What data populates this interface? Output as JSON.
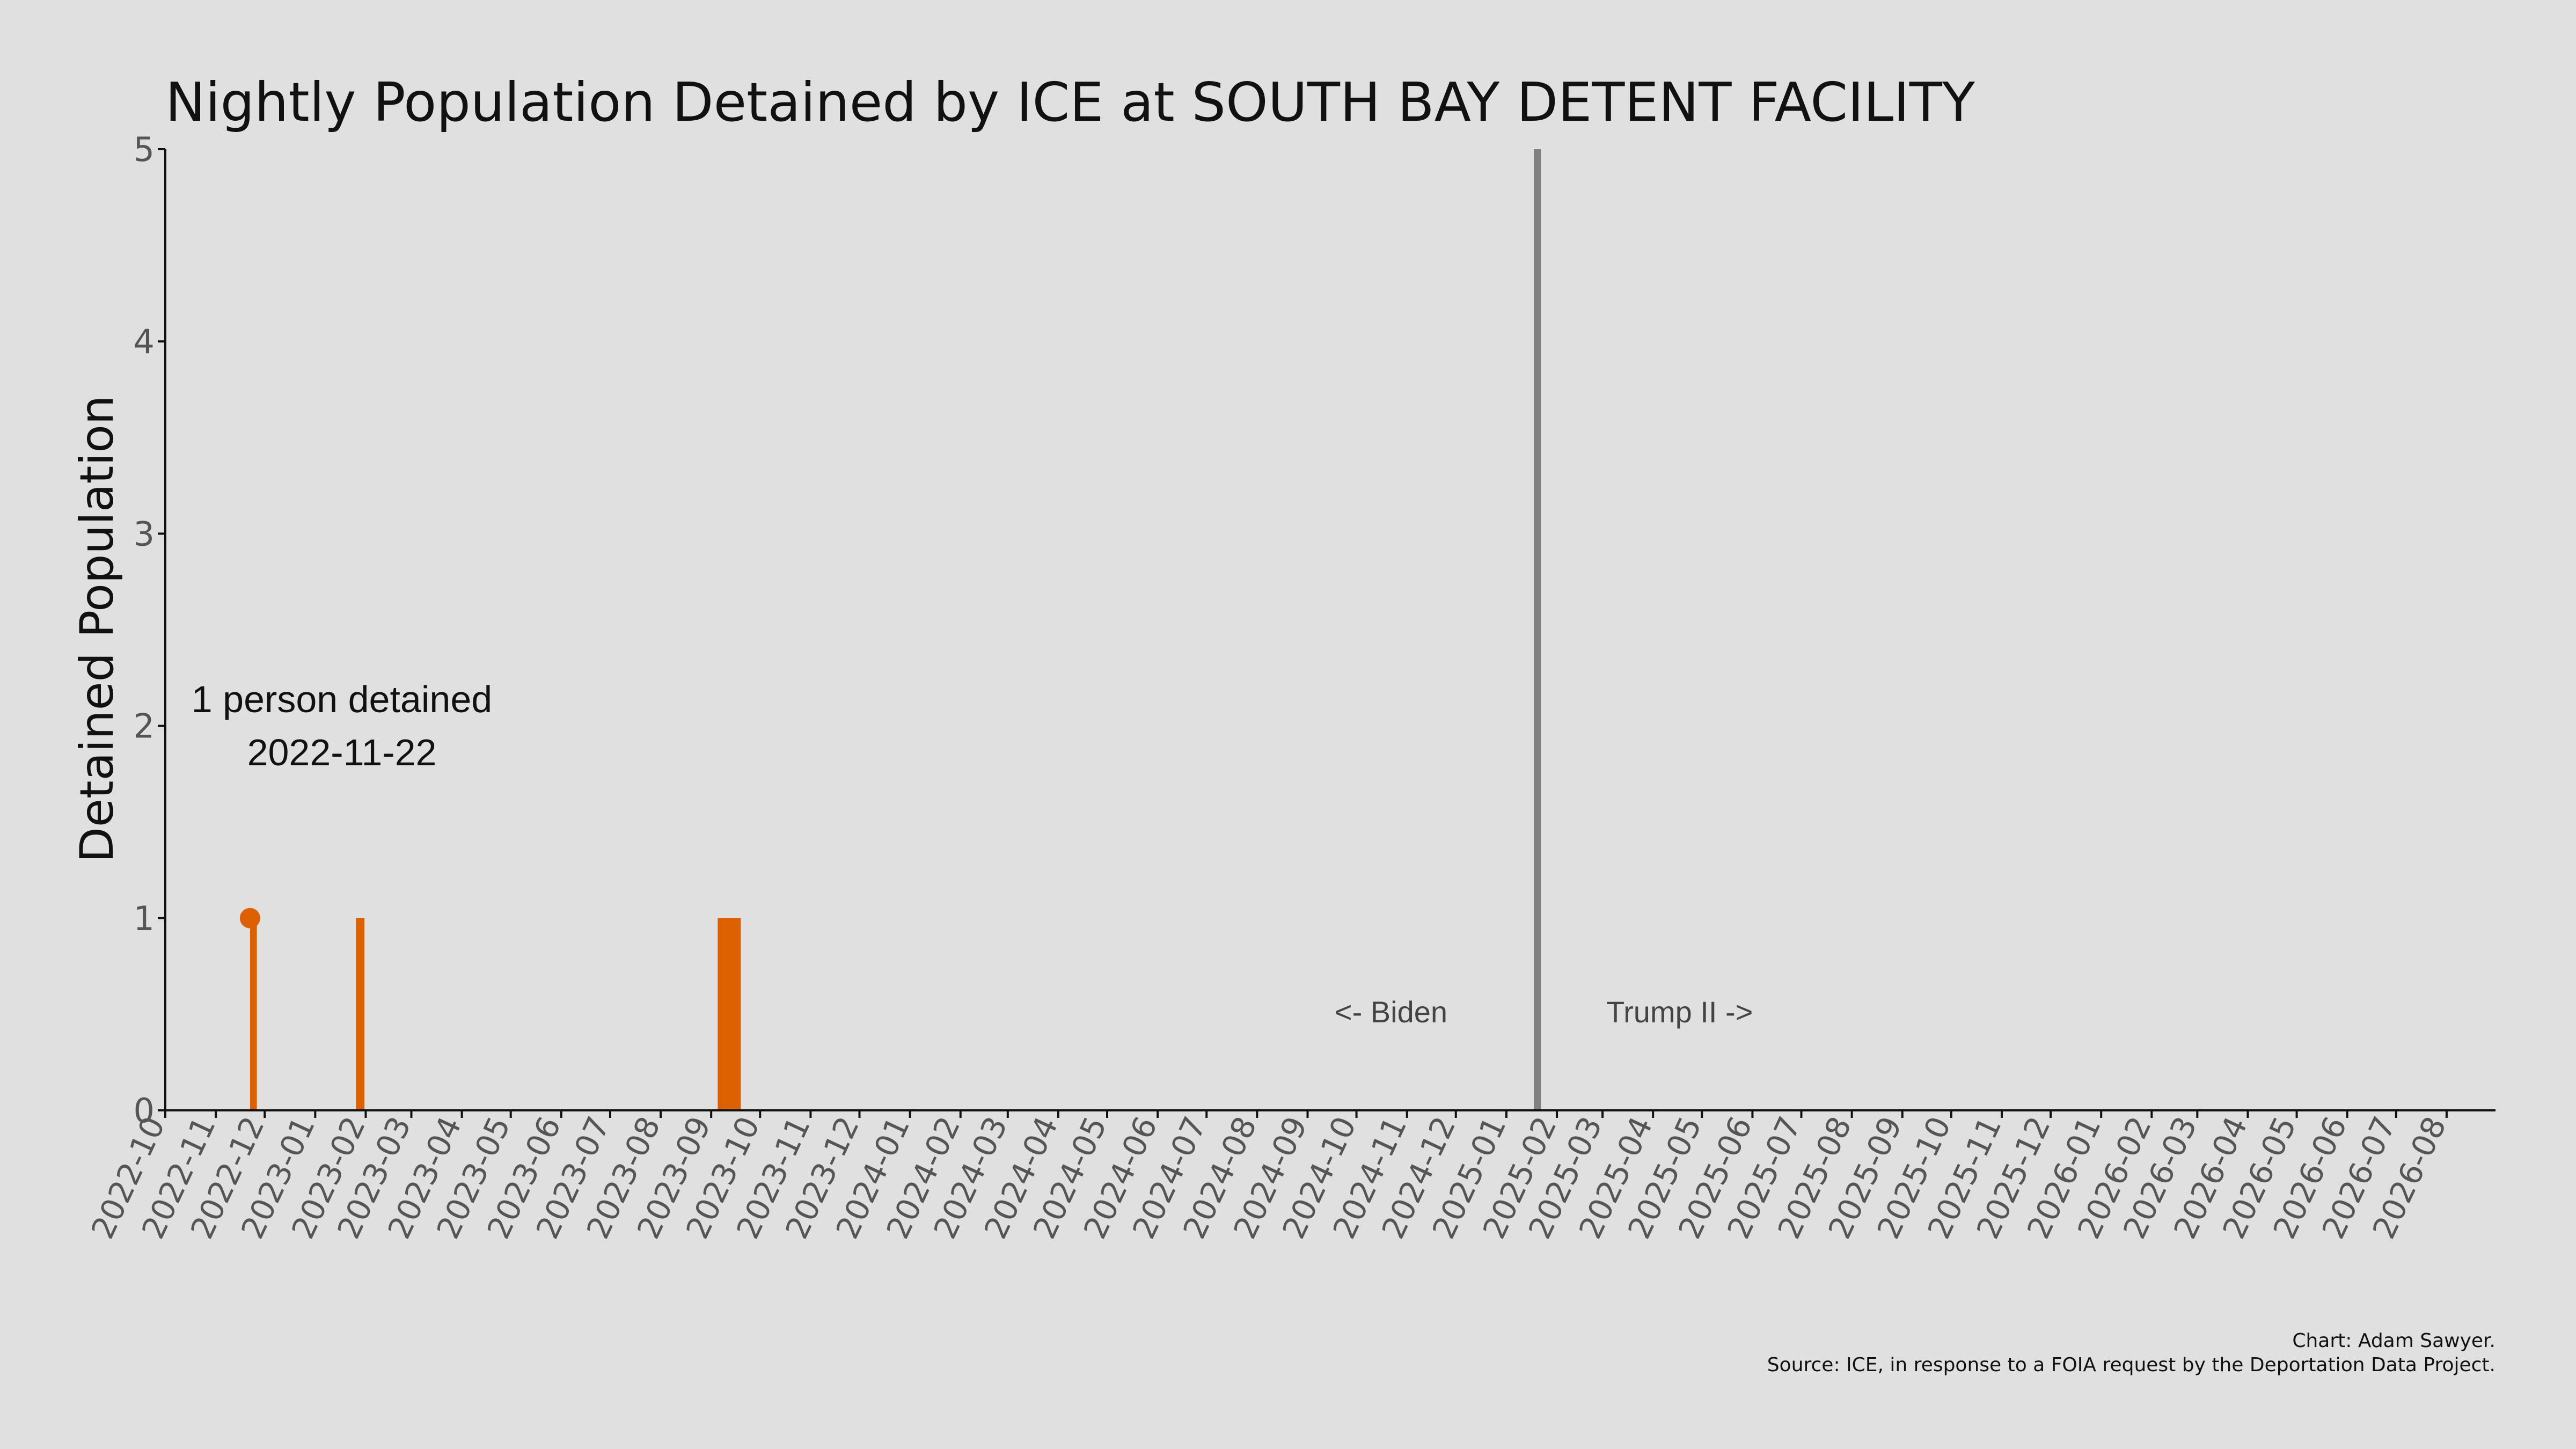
{
  "chart_data": {
    "type": "bar",
    "title": "Nightly Population Detained by ICE at SOUTH BAY DETENT FACILITY",
    "ylabel": "Detained Population",
    "xlabel": "",
    "ylim": [
      0,
      5
    ],
    "xlim": [
      "2022-10-01",
      "2026-08-31"
    ],
    "yticks": [
      "0",
      "1",
      "2",
      "3",
      "4",
      "5"
    ],
    "xticks": [
      "2022-10",
      "2022-11",
      "2022-12",
      "2023-01",
      "2023-02",
      "2023-03",
      "2023-04",
      "2023-05",
      "2023-06",
      "2023-07",
      "2023-08",
      "2023-09",
      "2023-10",
      "2023-11",
      "2023-12",
      "2024-01",
      "2024-02",
      "2024-03",
      "2024-04",
      "2024-05",
      "2024-06",
      "2024-07",
      "2024-08",
      "2024-09",
      "2024-10",
      "2024-11",
      "2024-12",
      "2025-01",
      "2025-02",
      "2025-03",
      "2025-04",
      "2025-05",
      "2025-06",
      "2025-07",
      "2025-08",
      "2025-09",
      "2025-10",
      "2025-11",
      "2025-12",
      "2026-01",
      "2026-02",
      "2026-03",
      "2026-04",
      "2026-05",
      "2026-06",
      "2026-07",
      "2026-08"
    ],
    "bars": [
      {
        "date": "2022-11-22",
        "value": 1
      },
      {
        "date": "2022-11-23",
        "value": 1
      },
      {
        "date": "2022-11-24",
        "value": 1
      },
      {
        "date": "2022-11-25",
        "value": 1
      },
      {
        "date": "2023-01-26",
        "value": 1
      },
      {
        "date": "2023-01-27",
        "value": 1
      },
      {
        "date": "2023-01-28",
        "value": 1
      },
      {
        "date": "2023-01-29",
        "value": 1
      },
      {
        "date": "2023-01-30",
        "value": 1
      },
      {
        "date": "2023-09-05",
        "value": 1
      },
      {
        "date": "2023-09-06",
        "value": 1
      },
      {
        "date": "2023-09-07",
        "value": 1
      },
      {
        "date": "2023-09-08",
        "value": 1
      },
      {
        "date": "2023-09-09",
        "value": 1
      },
      {
        "date": "2023-09-10",
        "value": 1
      },
      {
        "date": "2023-09-11",
        "value": 1
      },
      {
        "date": "2023-09-12",
        "value": 1
      },
      {
        "date": "2023-09-13",
        "value": 1
      },
      {
        "date": "2023-09-14",
        "value": 1
      },
      {
        "date": "2023-09-15",
        "value": 1
      },
      {
        "date": "2023-09-16",
        "value": 1
      },
      {
        "date": "2023-09-17",
        "value": 1
      },
      {
        "date": "2023-09-18",
        "value": 1
      }
    ],
    "highlight": {
      "date": "2022-11-22",
      "value": 1,
      "label_line1": "1 person detained",
      "label_line2": "2022-11-22"
    },
    "divider_date": "2025-01-20",
    "era_left_label": "<- Biden",
    "era_right_label": "Trump II ->",
    "bar_color": "#dd6100",
    "divider_color": "#808080",
    "grid": false,
    "legend": "none"
  },
  "credits": {
    "line1": "Chart: Adam Sawyer.",
    "line2": "Source: ICE, in response to a FOIA request by the Deportation Data Project."
  }
}
